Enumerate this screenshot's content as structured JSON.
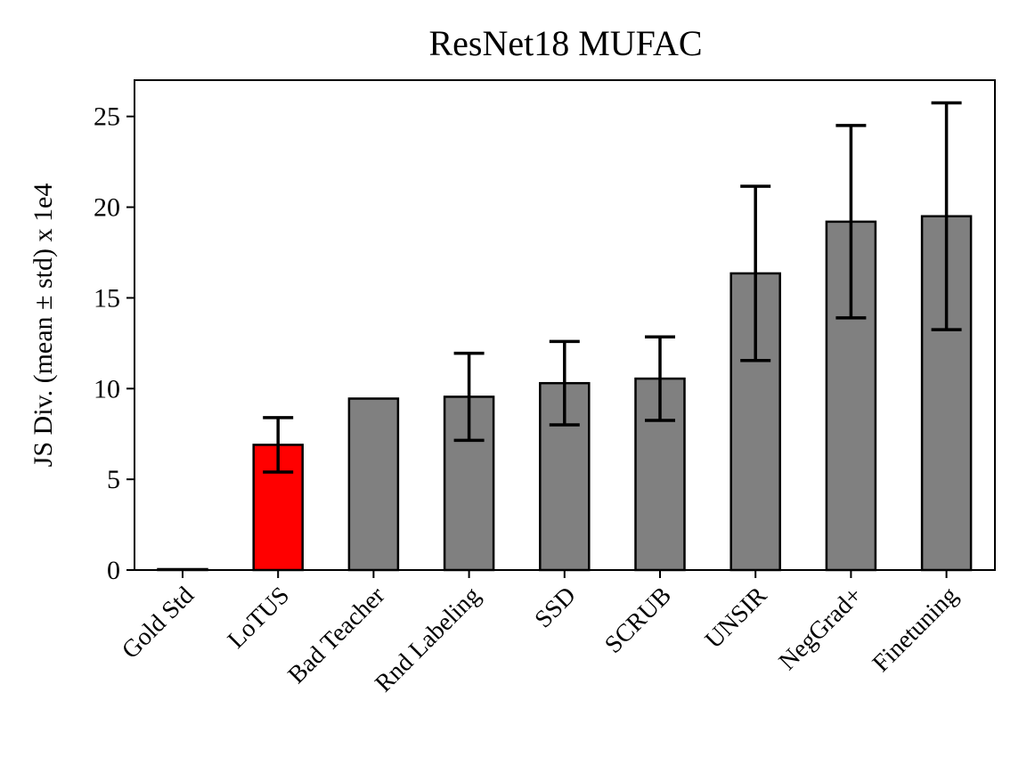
{
  "chart_data": {
    "type": "bar",
    "title": "ResNet18 MUFAC",
    "xlabel": "",
    "ylabel": "JS Div. (mean ± std) x 1e4",
    "categories": [
      "Gold Std",
      "LoTUS",
      "Bad Teacher",
      "Rnd Labeling",
      "SSD",
      "SCRUB",
      "UNSIR",
      "NegGrad+",
      "Finetuning"
    ],
    "values": [
      0.05,
      6.9,
      9.45,
      9.55,
      10.3,
      10.55,
      16.35,
      19.2,
      19.5
    ],
    "errors": [
      0.0,
      1.5,
      0.0,
      2.4,
      2.3,
      2.3,
      4.8,
      5.3,
      6.25
    ],
    "bar_colors": [
      "#808080",
      "#ff0000",
      "#808080",
      "#808080",
      "#808080",
      "#808080",
      "#808080",
      "#808080",
      "#808080"
    ],
    "yticks": [
      0,
      5,
      10,
      15,
      20,
      25
    ],
    "ylim": [
      0,
      27
    ],
    "grid": false,
    "legend": "none"
  }
}
